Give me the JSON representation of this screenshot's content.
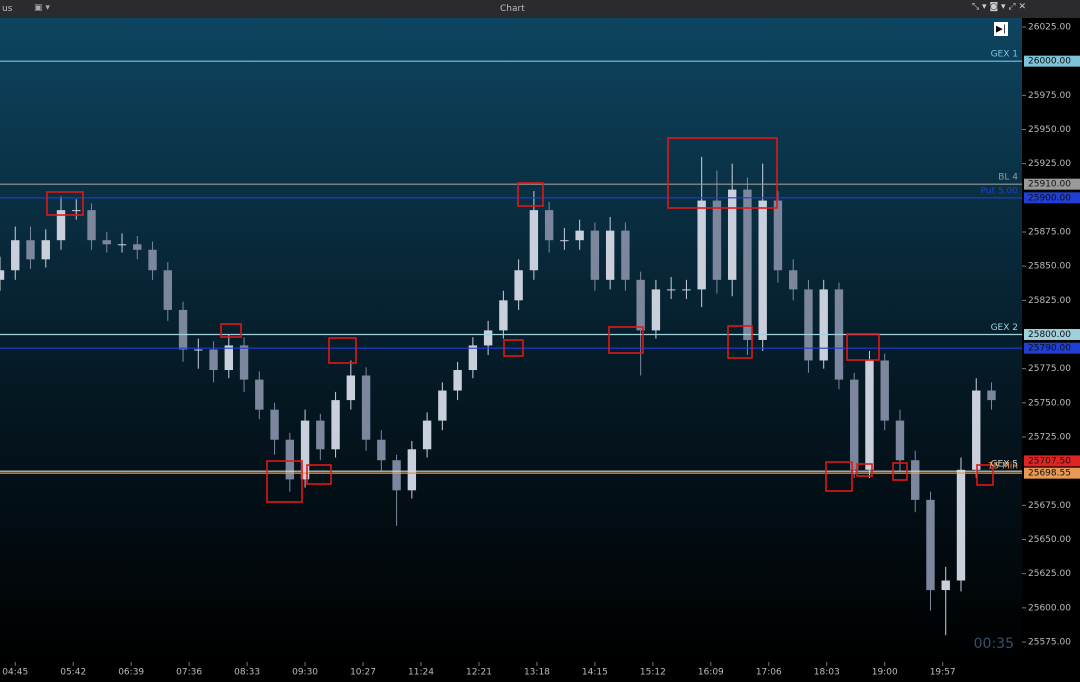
{
  "header": {
    "menu": "us",
    "title": "Chart"
  },
  "chart_data": {
    "type": "candlestick",
    "x": [
      270,
      285,
      300,
      315,
      330,
      345,
      360,
      375,
      390,
      405,
      420,
      435,
      450,
      465,
      480,
      495,
      510,
      525,
      540,
      555,
      570,
      585,
      600,
      615,
      630,
      645,
      660,
      675,
      690,
      705,
      720,
      735,
      750,
      765,
      780,
      795,
      810,
      825,
      840,
      855,
      870,
      885,
      900,
      915,
      930,
      945,
      960,
      975,
      990,
      1005,
      1020,
      1035,
      1050,
      1065,
      1080,
      1095,
      1110,
      1125,
      1140,
      1155,
      1170,
      1185,
      1200,
      1215,
      1230,
      1245
    ],
    "open": [
      25840,
      25847,
      25869,
      25855,
      25869,
      25891,
      25891,
      25869,
      25866,
      25866,
      25862,
      25847,
      25818,
      25789,
      25789,
      25774,
      25792,
      25767,
      25745,
      25723,
      25694,
      25737,
      25716,
      25752,
      25770,
      25723,
      25708,
      25686,
      25716,
      25737,
      25759,
      25774,
      25792,
      25803,
      25825,
      25847,
      25891,
      25869,
      25869,
      25876,
      25840,
      25876,
      25840,
      25803,
      25833,
      25833,
      25833,
      25898,
      25840,
      25906,
      25796,
      25898,
      25847,
      25833,
      25781,
      25833,
      25767,
      25701,
      25781,
      25737,
      25708,
      25679,
      25613,
      25620,
      25701,
      25759
    ],
    "high": [
      25857,
      25879,
      25879,
      25877,
      25901,
      25899,
      25896,
      25875,
      25874,
      25872,
      25868,
      25853,
      25824,
      25797,
      25795,
      25800,
      25798,
      25773,
      25750,
      25728,
      25745,
      25742,
      25758,
      25781,
      25776,
      25730,
      25712,
      25722,
      25743,
      25765,
      25780,
      25798,
      25810,
      25832,
      25855,
      25905,
      25897,
      25878,
      25884,
      25882,
      25886,
      25882,
      25846,
      25840,
      25842,
      25840,
      25930,
      25920,
      25925,
      25915,
      25925,
      25905,
      25855,
      25840,
      25840,
      25838,
      25772,
      25788,
      25786,
      25745,
      25715,
      25685,
      25630,
      25710,
      25768,
      25765
    ],
    "low": [
      25832,
      25840,
      25848,
      25849,
      25862,
      25884,
      25862,
      25860,
      25860,
      25855,
      25840,
      25810,
      25780,
      25775,
      25765,
      25768,
      25758,
      25738,
      25712,
      25685,
      25688,
      25708,
      25710,
      25745,
      25715,
      25700,
      25660,
      25680,
      25710,
      25730,
      25752,
      25768,
      25785,
      25797,
      25818,
      25840,
      25860,
      25862,
      25862,
      25832,
      25833,
      25832,
      25770,
      25797,
      25826,
      25826,
      25820,
      25830,
      25828,
      25785,
      25788,
      25838,
      25825,
      25772,
      25775,
      25760,
      25695,
      25695,
      25730,
      25700,
      25670,
      25598,
      25580,
      25612,
      25695,
      25745
    ],
    "close": [
      25847,
      25869,
      25855,
      25869,
      25891,
      25891,
      25869,
      25866,
      25866,
      25862,
      25847,
      25818,
      25789,
      25789,
      25774,
      25792,
      25767,
      25745,
      25723,
      25694,
      25737,
      25716,
      25752,
      25770,
      25723,
      25708,
      25686,
      25716,
      25737,
      25759,
      25774,
      25792,
      25803,
      25825,
      25847,
      25891,
      25869,
      25869,
      25876,
      25840,
      25876,
      25840,
      25803,
      25833,
      25833,
      25833,
      25898,
      25840,
      25906,
      25796,
      25898,
      25847,
      25833,
      25781,
      25833,
      25767,
      25701,
      25781,
      25737,
      25708,
      25679,
      25613,
      25620,
      25701,
      25759,
      25752
    ],
    "up_color": "#c9cfdb",
    "down_color": "#7c879e",
    "xlim": [
      270,
      1275
    ],
    "xticks": [
      {
        "value": 285,
        "label": "04:45"
      },
      {
        "value": 342,
        "label": "05:42"
      },
      {
        "value": 399,
        "label": "06:39"
      },
      {
        "value": 456,
        "label": "07:36"
      },
      {
        "value": 513,
        "label": "08:33"
      },
      {
        "value": 570,
        "label": "09:30"
      },
      {
        "value": 627,
        "label": "10:27"
      },
      {
        "value": 684,
        "label": "11:24"
      },
      {
        "value": 741,
        "label": "12:21"
      },
      {
        "value": 798,
        "label": "13:18"
      },
      {
        "value": 855,
        "label": "14:15"
      },
      {
        "value": 912,
        "label": "15:12"
      },
      {
        "value": 969,
        "label": "16:09"
      },
      {
        "value": 1026,
        "label": "17:06"
      },
      {
        "value": 1083,
        "label": "18:03"
      },
      {
        "value": 1140,
        "label": "19:00"
      },
      {
        "value": 1197,
        "label": "19:57"
      }
    ],
    "ylim": [
      25575,
      26025
    ],
    "yticks": [
      {
        "value": 26025,
        "label": "26025.00"
      },
      {
        "value": 25975,
        "label": "25975.00"
      },
      {
        "value": 25950,
        "label": "25950.00"
      },
      {
        "value": 25925,
        "label": "25925.00"
      },
      {
        "value": 25875,
        "label": "25875.00"
      },
      {
        "value": 25850,
        "label": "25850.00"
      },
      {
        "value": 25825,
        "label": "25825.00"
      },
      {
        "value": 25775,
        "label": "25775.00"
      },
      {
        "value": 25750,
        "label": "25750.00"
      },
      {
        "value": 25725,
        "label": "25725.00"
      },
      {
        "value": 25675,
        "label": "25675.00"
      },
      {
        "value": 25650,
        "label": "25650.00"
      },
      {
        "value": 25625,
        "label": "25625.00"
      },
      {
        "value": 25600,
        "label": "25600.00"
      },
      {
        "value": 25575,
        "label": "25575.00"
      }
    ],
    "levels": [
      {
        "name": "GEX 1",
        "value": 26000,
        "value_label": "26000.00",
        "color": "#7fc3d8"
      },
      {
        "name": "BL 4",
        "value": 25910,
        "value_label": "25910.00",
        "color": "#9a9a9a"
      },
      {
        "name": "Put 5.00",
        "value": 25900,
        "value_label": "25900.00",
        "color": "#1f3fd6"
      },
      {
        "name": "GEX 2",
        "value": 25800,
        "value_label": "25800.00",
        "color": "#9fd0dc"
      },
      {
        "value": 25790,
        "value_label": "25790.00",
        "color": "#1f3fd6"
      },
      {
        "name": "GEX 5",
        "value": 25700,
        "color": "#d8d8d8"
      },
      {
        "value": 25707.5,
        "value_label": "25707.50",
        "color": "#e02424",
        "line": false
      },
      {
        "name": "15 Min",
        "value": 25698.55,
        "value_label": "25698.55",
        "color": "#e79a55"
      }
    ],
    "timer": "00:35"
  }
}
